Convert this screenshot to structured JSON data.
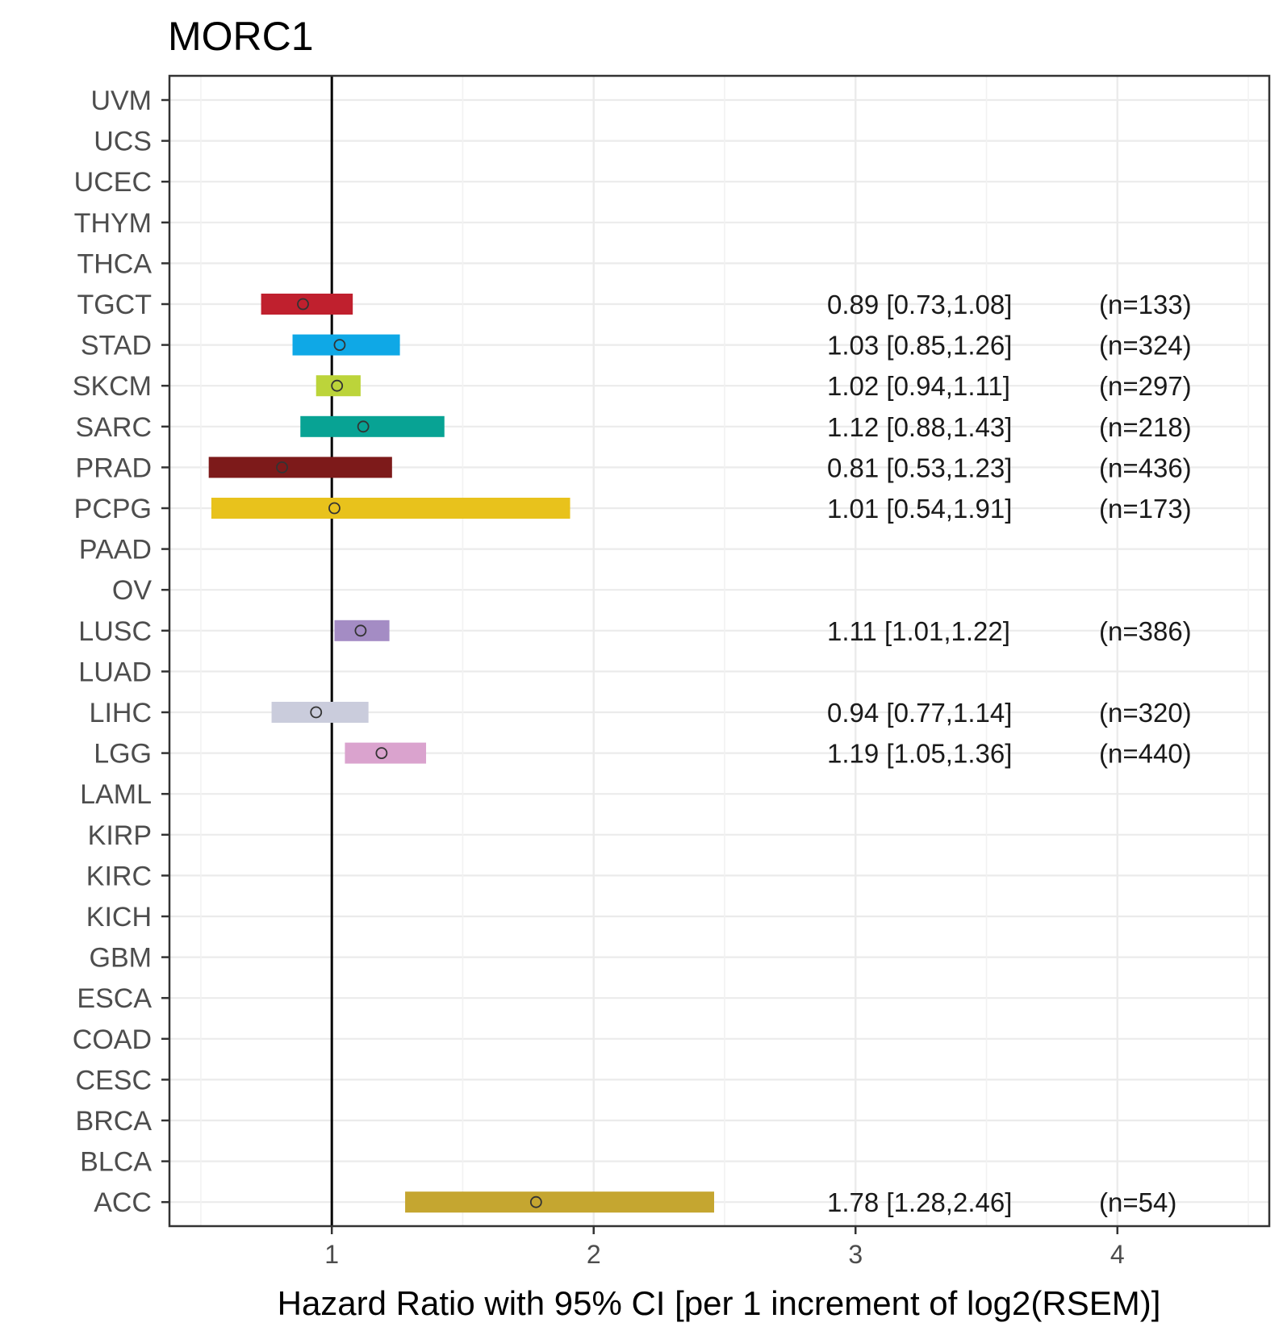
{
  "chart_data": {
    "type": "forest",
    "title": "MORC1",
    "xlabel": "Hazard Ratio with 95% CI [per 1 increment of log2(RSEM)]",
    "ylabel": "",
    "xlim": [
      0.38,
      4.58
    ],
    "x_ticks": [
      1,
      2,
      3,
      4
    ],
    "x_tick_labels": [
      "1",
      "2",
      "3",
      "4"
    ],
    "reference_line": 1,
    "grid": true,
    "categories": [
      "UVM",
      "UCS",
      "UCEC",
      "THYM",
      "THCA",
      "TGCT",
      "STAD",
      "SKCM",
      "SARC",
      "PRAD",
      "PCPG",
      "PAAD",
      "OV",
      "LUSC",
      "LUAD",
      "LIHC",
      "LGG",
      "LAML",
      "KIRP",
      "KIRC",
      "KICH",
      "GBM",
      "ESCA",
      "COAD",
      "CESC",
      "BRCA",
      "BLCA",
      "ACC"
    ],
    "entries": [
      {
        "cancer": "TGCT",
        "hr": 0.89,
        "lower": 0.73,
        "upper": 1.08,
        "label": "0.89 [0.73,1.08]",
        "n_label": "(n=133)",
        "color": "#C0202E"
      },
      {
        "cancer": "STAD",
        "hr": 1.03,
        "lower": 0.85,
        "upper": 1.26,
        "label": "1.03 [0.85,1.26]",
        "n_label": "(n=324)",
        "color": "#0FA8E6"
      },
      {
        "cancer": "SKCM",
        "hr": 1.02,
        "lower": 0.94,
        "upper": 1.11,
        "label": "1.02 [0.94,1.11]",
        "n_label": "(n=297)",
        "color": "#BCD43A"
      },
      {
        "cancer": "SARC",
        "hr": 1.12,
        "lower": 0.88,
        "upper": 1.43,
        "label": "1.12 [0.88,1.43]",
        "n_label": "(n=218)",
        "color": "#08A394"
      },
      {
        "cancer": "PRAD",
        "hr": 0.81,
        "lower": 0.53,
        "upper": 1.23,
        "label": "0.81 [0.53,1.23]",
        "n_label": "(n=436)",
        "color": "#7D1A1A"
      },
      {
        "cancer": "PCPG",
        "hr": 1.01,
        "lower": 0.54,
        "upper": 1.91,
        "label": "1.01 [0.54,1.91]",
        "n_label": "(n=173)",
        "color": "#E8C21C"
      },
      {
        "cancer": "LUSC",
        "hr": 1.11,
        "lower": 1.01,
        "upper": 1.22,
        "label": "1.11 [1.01,1.22]",
        "n_label": "(n=386)",
        "color": "#A48CC4"
      },
      {
        "cancer": "LIHC",
        "hr": 0.94,
        "lower": 0.77,
        "upper": 1.14,
        "label": "0.94 [0.77,1.14]",
        "n_label": "(n=320)",
        "color": "#CACCDC"
      },
      {
        "cancer": "LGG",
        "hr": 1.19,
        "lower": 1.05,
        "upper": 1.36,
        "label": "1.19 [1.05,1.36]",
        "n_label": "(n=440)",
        "color": "#DAA3CE"
      },
      {
        "cancer": "ACC",
        "hr": 1.78,
        "lower": 1.28,
        "upper": 2.46,
        "label": "1.78 [1.28,2.46]",
        "n_label": "(n=54)",
        "color": "#C5A630"
      }
    ]
  }
}
